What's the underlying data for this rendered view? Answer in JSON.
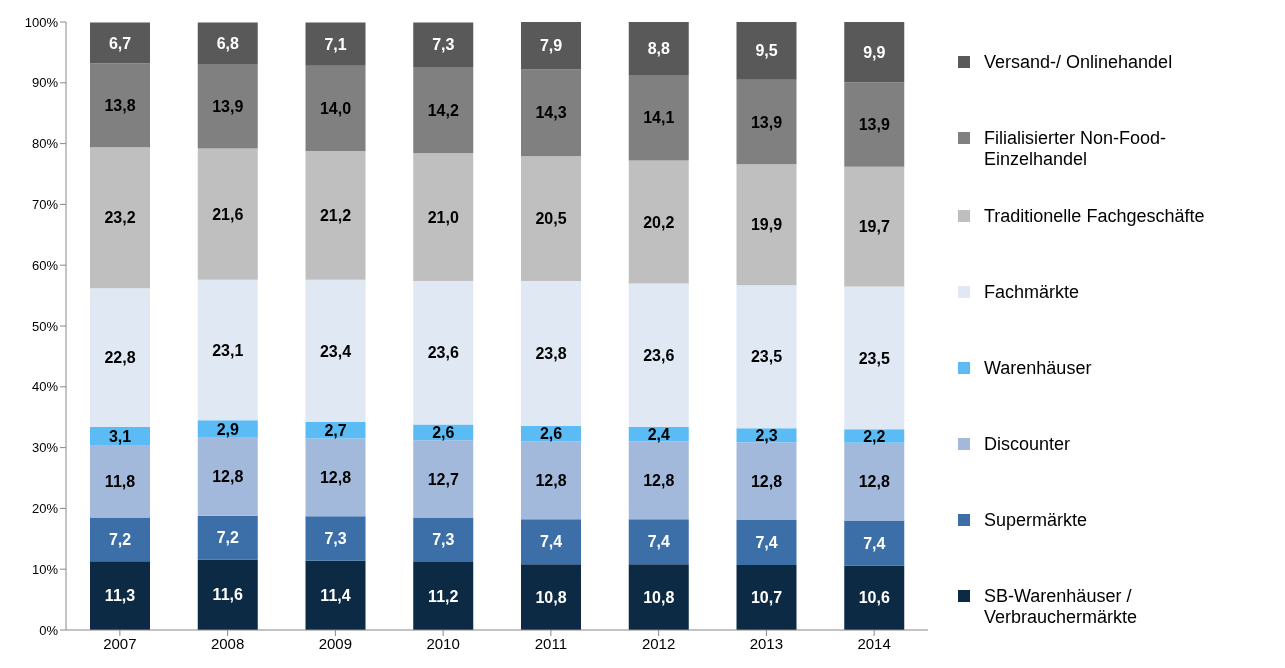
{
  "chart_data": {
    "type": "bar",
    "stacked": true,
    "legend": "right",
    "categories": [
      "2007",
      "2008",
      "2009",
      "2010",
      "2011",
      "2012",
      "2013",
      "2014"
    ],
    "ylim": [
      0,
      100
    ],
    "yticks": [
      {
        "value": 0,
        "label": "0%"
      },
      {
        "value": 10,
        "label": "10%"
      },
      {
        "value": 20,
        "label": "20%"
      },
      {
        "value": 30,
        "label": "30%"
      },
      {
        "value": 40,
        "label": "40%"
      },
      {
        "value": 50,
        "label": "50%"
      },
      {
        "value": 60,
        "label": "60%"
      },
      {
        "value": 70,
        "label": "70%"
      },
      {
        "value": 80,
        "label": "80%"
      },
      {
        "value": 90,
        "label": "90%"
      },
      {
        "value": 100,
        "label": "100%"
      }
    ],
    "series": [
      {
        "name": "SB-Warenhäuser / Verbrauchermärkte",
        "color": "#0d2a45",
        "values": [
          11.3,
          11.6,
          11.4,
          11.2,
          10.8,
          10.8,
          10.7,
          10.6
        ],
        "value_labels": [
          "11,3",
          "11,6",
          "11,4",
          "11,2",
          "10,8",
          "10,8",
          "10,7",
          "10,6"
        ]
      },
      {
        "name": "Supermärkte",
        "color": "#3c6ea8",
        "values": [
          7.2,
          7.2,
          7.3,
          7.3,
          7.4,
          7.4,
          7.4,
          7.4
        ],
        "value_labels": [
          "7,2",
          "7,2",
          "7,3",
          "7,3",
          "7,4",
          "7,4",
          "7,4",
          "7,4"
        ]
      },
      {
        "name": "Discounter",
        "color": "#a3b9dc",
        "values": [
          11.8,
          12.8,
          12.8,
          12.7,
          12.8,
          12.8,
          12.8,
          12.8
        ],
        "value_labels": [
          "11,8",
          "12,8",
          "12,8",
          "12,7",
          "12,8",
          "12,8",
          "12,8",
          "12,8"
        ]
      },
      {
        "name": "Warenhäuser",
        "color": "#5bbcf5",
        "values": [
          3.1,
          2.9,
          2.7,
          2.6,
          2.6,
          2.4,
          2.3,
          2.2
        ],
        "value_labels": [
          "3,1",
          "2,9",
          "2,7",
          "2,6",
          "2,6",
          "2,4",
          "2,3",
          "2,2"
        ]
      },
      {
        "name": "Fachmärkte",
        "color": "#dfe8f3",
        "values": [
          22.8,
          23.1,
          23.4,
          23.6,
          23.8,
          23.6,
          23.5,
          23.5
        ],
        "value_labels": [
          "22,8",
          "23,1",
          "23,4",
          "23,6",
          "23,8",
          "23,6",
          "23,5",
          "23,5"
        ]
      },
      {
        "name": "Traditionelle Fachgeschäfte",
        "color": "#bfbfbf",
        "values": [
          23.2,
          21.6,
          21.2,
          21.0,
          20.5,
          20.2,
          19.9,
          19.7
        ],
        "value_labels": [
          "23,2",
          "21,6",
          "21,2",
          "21,0",
          "20,5",
          "20,2",
          "19,9",
          "19,7"
        ]
      },
      {
        "name": "Filialisierter Non-Food-Einzelhandel",
        "color": "#808080",
        "values": [
          13.8,
          13.9,
          14.0,
          14.2,
          14.3,
          14.1,
          13.9,
          13.9
        ],
        "value_labels": [
          "13,8",
          "13,9",
          "14,0",
          "14,2",
          "14,3",
          "14,1",
          "13,9",
          "13,9"
        ]
      },
      {
        "name": "Versand-/ Onlinehandel",
        "color": "#595959",
        "values": [
          6.7,
          6.8,
          7.1,
          7.3,
          7.9,
          8.8,
          9.5,
          9.9
        ],
        "value_labels": [
          "6,7",
          "6,8",
          "7,1",
          "7,3",
          "7,9",
          "8,8",
          "9,5",
          "9,9"
        ]
      }
    ]
  }
}
